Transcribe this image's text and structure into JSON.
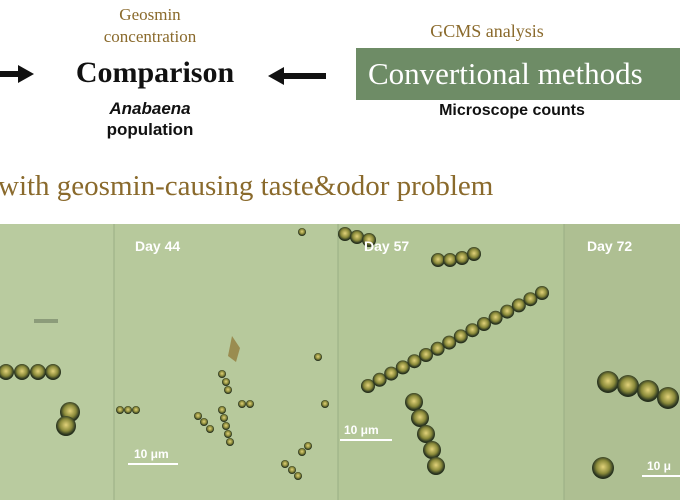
{
  "diagram": {
    "geosmin_label": "Geosmin\nconcentration",
    "comparison_label": "Comparison",
    "anabaena_label": "Anabaena",
    "population_label": "population",
    "gcms_label": "GCMS analysis",
    "conventional_label": "Convertional methods",
    "microscope_label": "Microscope counts",
    "heading": "with geosmin-causing taste&odor problem"
  },
  "micrographs": [
    {
      "day": "",
      "scale": ""
    },
    {
      "day": "Day 44",
      "scale": "10 μm"
    },
    {
      "day": "Day 57",
      "scale": "10 μm"
    },
    {
      "day": "Day 72",
      "scale": "10 μ"
    }
  ],
  "colors": {
    "caption_brown": "#8a6a2c",
    "box_green": "#6e8c66",
    "micro_bg": "#b4c79a"
  }
}
